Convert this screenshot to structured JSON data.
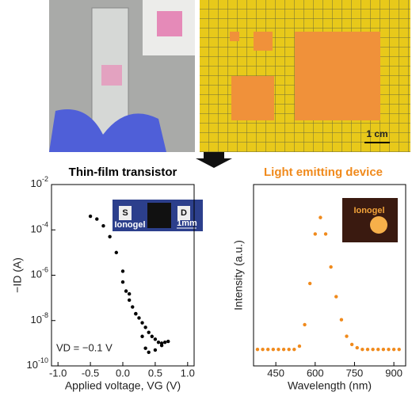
{
  "photos": {
    "scale_bar": "1 cm"
  },
  "chart_data": [
    {
      "type": "scatter",
      "title": "Thin-film transistor",
      "xlabel": "Applied voltage, VG (V)",
      "ylabel": "−ID (A)",
      "annotation": "VD = −0.1 V",
      "inset_labels": [
        "S",
        "D",
        "Ionogel",
        "1mm"
      ],
      "ylog": true,
      "xlim": [
        -1.1,
        1.1
      ],
      "ylim": [
        1e-10,
        0.01
      ],
      "xticks": [
        {
          "value": -1,
          "label": "-1.0"
        },
        -0.5,
        {
          "value": 0,
          "label": "0.0"
        },
        0.5,
        {
          "value": 1,
          "label": "1.0"
        }
      ],
      "yticks": [
        {
          "value": 1e-10,
          "label": "10-10"
        },
        {
          "value": 1e-08,
          "label": "10-8"
        },
        {
          "value": 1e-06,
          "label": "10-6"
        },
        {
          "value": 0.0001,
          "label": "10-4"
        },
        {
          "value": 0.01,
          "label": "10-2"
        }
      ],
      "series": [
        {
          "color": "#000000",
          "x": [
            -0.5,
            -0.4,
            -0.3,
            -0.2,
            -0.1,
            0,
            0.1,
            0.2,
            0.3,
            0.35,
            0.4,
            0.5,
            0.6,
            0.7
          ],
          "values": [
            0.0004,
            0.0003,
            0.00015,
            5e-05,
            1e-05,
            1.5e-06,
            1.5e-07,
            2e-08,
            2e-09,
            6e-10,
            4e-10,
            5e-10,
            8e-10,
            1.2e-09
          ]
        },
        {
          "color": "#000000",
          "x": [
            0.65,
            0.6,
            0.55,
            0.5,
            0.45,
            0.4,
            0.35,
            0.3,
            0.25,
            0.2,
            0.15,
            0.1,
            0.05,
            0
          ],
          "values": [
            1.1e-09,
            1e-09,
            1.1e-09,
            1.5e-09,
            2e-09,
            3e-09,
            5e-09,
            8e-09,
            1.3e-08,
            2e-08,
            4e-08,
            8e-08,
            2e-07,
            5e-07
          ]
        }
      ]
    },
    {
      "type": "scatter",
      "title": "Light emitting device",
      "xlabel": "Wavelength (nm)",
      "ylabel": "Intensity (a.u.)",
      "inset_labels": [
        "Ionogel"
      ],
      "ylog": false,
      "xlim": [
        365,
        945
      ],
      "ylim": [
        0,
        1.1
      ],
      "xticks": [
        450,
        600,
        750,
        900
      ],
      "series": [
        {
          "color": "#f08a1c",
          "x": [
            380,
            400,
            420,
            440,
            460,
            480,
            500,
            520,
            540,
            560,
            580,
            600,
            620,
            640,
            660,
            680,
            700,
            720,
            740,
            760,
            780,
            800,
            820,
            840,
            860,
            880,
            900,
            920
          ],
          "values": [
            0.1,
            0.1,
            0.1,
            0.1,
            0.1,
            0.1,
            0.1,
            0.1,
            0.12,
            0.25,
            0.5,
            0.8,
            0.9,
            0.8,
            0.6,
            0.42,
            0.28,
            0.18,
            0.13,
            0.11,
            0.1,
            0.1,
            0.1,
            0.1,
            0.1,
            0.1,
            0.1,
            0.1
          ]
        }
      ]
    }
  ]
}
